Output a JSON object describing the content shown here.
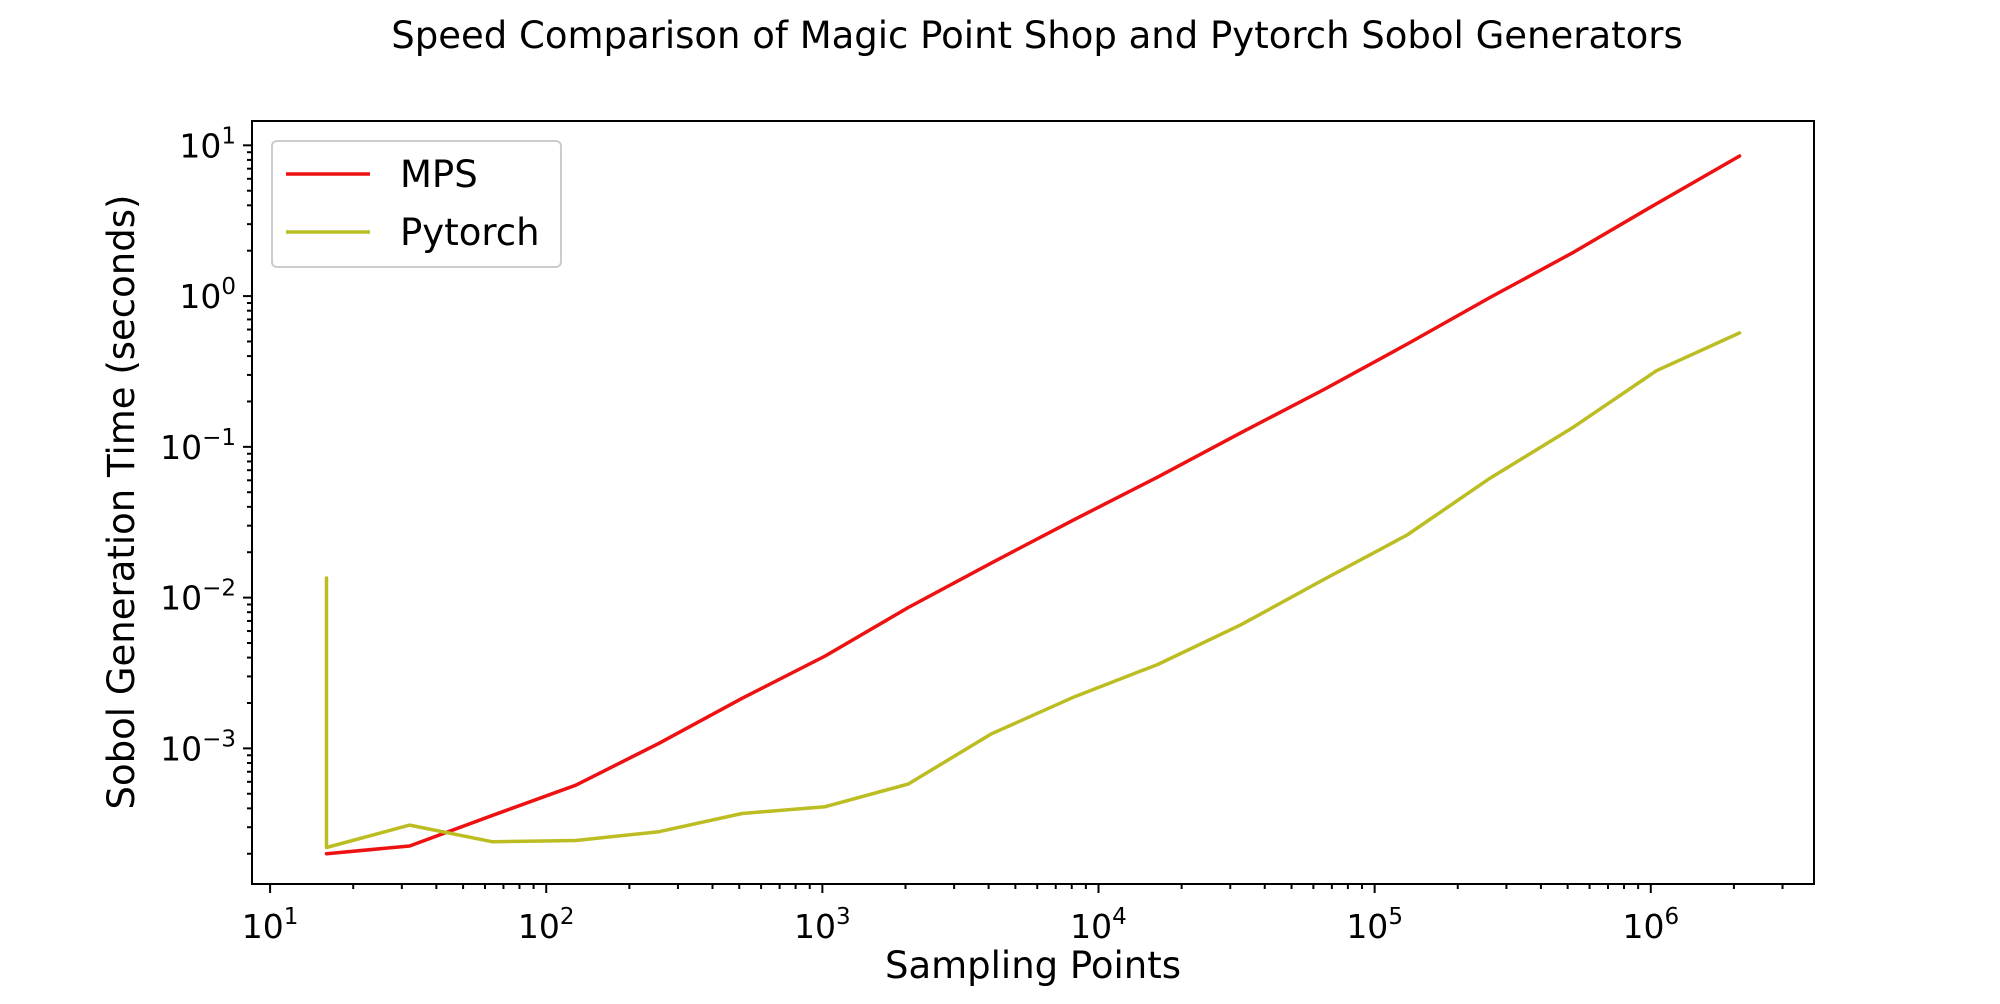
{
  "chart_data": {
    "type": "line",
    "title": "Speed Comparison of Magic Point Shop and Pytorch Sobol Generators",
    "xlabel": "Sampling Points",
    "ylabel": "Sobol Generation Time (seconds)",
    "xscale": "log",
    "yscale": "log",
    "xlim": [
      8.6,
      3900000
    ],
    "ylim": [
      0.000126,
      14.5
    ],
    "grid": false,
    "legend_position": "top-left",
    "x_ticks": [
      {
        "value": 10,
        "base": "10",
        "exp": "1"
      },
      {
        "value": 100,
        "base": "10",
        "exp": "2"
      },
      {
        "value": 1000,
        "base": "10",
        "exp": "3"
      },
      {
        "value": 10000,
        "base": "10",
        "exp": "4"
      },
      {
        "value": 100000,
        "base": "10",
        "exp": "5"
      },
      {
        "value": 1000000,
        "base": "10",
        "exp": "6"
      }
    ],
    "y_ticks": [
      {
        "value": 0.001,
        "base": "10",
        "exp": "−3"
      },
      {
        "value": 0.01,
        "base": "10",
        "exp": "−2"
      },
      {
        "value": 0.1,
        "base": "10",
        "exp": "−1"
      },
      {
        "value": 1,
        "base": "10",
        "exp": "0"
      },
      {
        "value": 10,
        "base": "10",
        "exp": "1"
      }
    ],
    "series": [
      {
        "name": "MPS",
        "color": "#ee1111",
        "x": [
          16,
          32,
          64,
          128,
          256,
          512,
          1024,
          2048,
          4096,
          8192,
          16384,
          32768,
          65536,
          131072,
          262144,
          524288,
          1048576,
          2097152
        ],
        "y": [
          0.0002,
          0.000225,
          0.00036,
          0.00057,
          0.00108,
          0.00215,
          0.0041,
          0.0086,
          0.017,
          0.033,
          0.063,
          0.124,
          0.24,
          0.48,
          0.98,
          1.95,
          4.1,
          8.5
        ]
      },
      {
        "name": "Pytorch",
        "color": "#bcbd22",
        "x": [
          16,
          16,
          16,
          16,
          32,
          64,
          128,
          256,
          512,
          1024,
          2048,
          4096,
          8192,
          16384,
          32768,
          65536,
          131072,
          262144,
          524288,
          1048576,
          2097152
        ],
        "y": [
          0.0135,
          0.00023,
          0.0024,
          0.00022,
          0.00031,
          0.00024,
          0.000245,
          0.00028,
          0.00037,
          0.00041,
          0.00058,
          0.00125,
          0.0022,
          0.0036,
          0.0066,
          0.0132,
          0.026,
          0.062,
          0.135,
          0.32,
          0.57
        ]
      }
    ]
  }
}
